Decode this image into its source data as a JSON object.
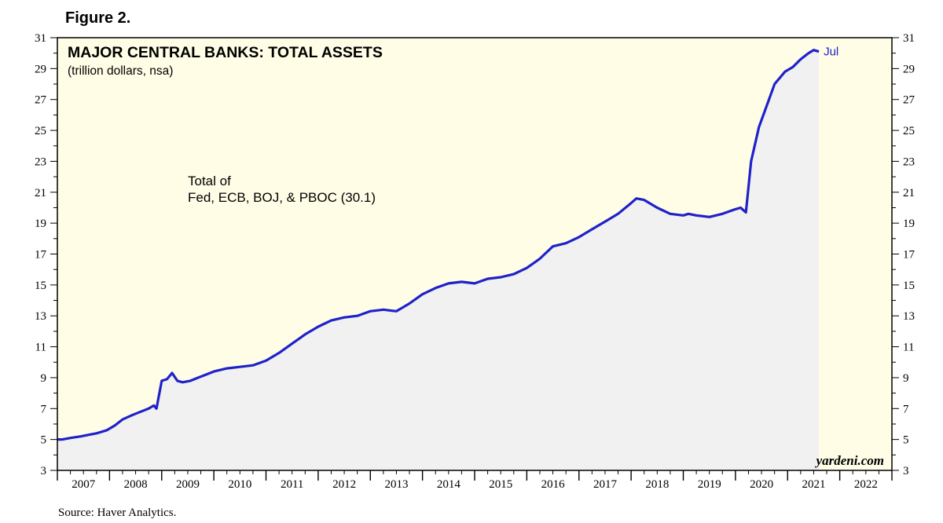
{
  "figure_label": "Figure 2.",
  "source_note": "Source: Haver Analytics.",
  "watermark": "yardeni.com",
  "colors": {
    "plot_background": "#fffde6",
    "area_fill": "#f1f1f1",
    "line": "#1f22c9",
    "last_label": "#1f22c9"
  },
  "chart_data": {
    "type": "area",
    "title": "MAJOR CENTRAL BANKS: TOTAL ASSETS",
    "subtitle": "(trillion dollars, nsa)",
    "annotation_line1": "Total of",
    "annotation_line2": "Fed, ECB, BOJ, & PBOC (30.1)",
    "last_point_label": "Jul",
    "ylim": [
      3,
      31
    ],
    "y_ticks": [
      3,
      5,
      7,
      9,
      11,
      13,
      15,
      17,
      19,
      21,
      23,
      25,
      27,
      29,
      31
    ],
    "xlim": [
      2007.0,
      2023.0
    ],
    "x_tick_labels": [
      "2007",
      "2008",
      "2009",
      "2010",
      "2011",
      "2012",
      "2013",
      "2014",
      "2015",
      "2016",
      "2017",
      "2018",
      "2019",
      "2020",
      "2021",
      "2022"
    ],
    "grid": false,
    "series": [
      {
        "x": [
          2007.0,
          2007.1,
          2007.25,
          2007.45,
          2007.6,
          2007.75,
          2007.95,
          2008.1,
          2008.25,
          2008.45,
          2008.6,
          2008.75,
          2008.85,
          2008.9,
          2009.0,
          2009.1,
          2009.2,
          2009.3,
          2009.4,
          2009.55,
          2009.7,
          2009.85,
          2010.0,
          2010.25,
          2010.5,
          2010.75,
          2011.0,
          2011.25,
          2011.5,
          2011.75,
          2012.0,
          2012.25,
          2012.5,
          2012.75,
          2013.0,
          2013.25,
          2013.5,
          2013.75,
          2014.0,
          2014.25,
          2014.5,
          2014.75,
          2015.0,
          2015.25,
          2015.5,
          2015.75,
          2016.0,
          2016.25,
          2016.5,
          2016.75,
          2017.0,
          2017.25,
          2017.5,
          2017.75,
          2018.0,
          2018.1,
          2018.25,
          2018.5,
          2018.75,
          2019.0,
          2019.1,
          2019.25,
          2019.5,
          2019.75,
          2020.0,
          2020.1,
          2020.2,
          2020.3,
          2020.45,
          2020.6,
          2020.75,
          2020.95,
          2021.1,
          2021.25,
          2021.4,
          2021.5,
          2021.6
        ],
        "values": [
          5.0,
          5.0,
          5.1,
          5.2,
          5.3,
          5.4,
          5.6,
          5.9,
          6.3,
          6.6,
          6.8,
          7.0,
          7.2,
          7.0,
          8.8,
          8.9,
          9.3,
          8.8,
          8.7,
          8.8,
          9.0,
          9.2,
          9.4,
          9.6,
          9.7,
          9.8,
          10.1,
          10.6,
          11.2,
          11.8,
          12.3,
          12.7,
          12.9,
          13.0,
          13.3,
          13.4,
          13.3,
          13.8,
          14.4,
          14.8,
          15.1,
          15.2,
          15.1,
          15.4,
          15.5,
          15.7,
          16.1,
          16.7,
          17.5,
          17.7,
          18.1,
          18.6,
          19.1,
          19.6,
          20.3,
          20.6,
          20.5,
          20.0,
          19.6,
          19.5,
          19.6,
          19.5,
          19.4,
          19.6,
          19.9,
          20.0,
          19.7,
          23.0,
          25.2,
          26.6,
          28.0,
          28.8,
          29.1,
          29.6,
          30.0,
          30.2,
          30.1
        ]
      }
    ]
  }
}
